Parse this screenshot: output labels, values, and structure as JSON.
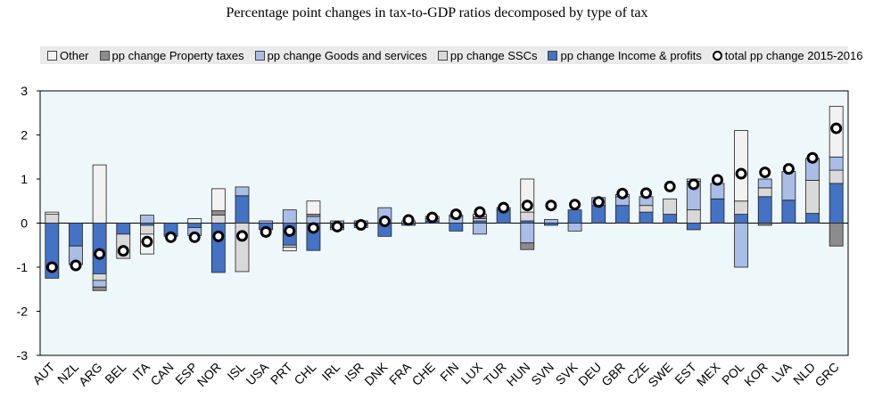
{
  "chart_data": {
    "type": "bar",
    "title": "Percentage point changes in tax-to-GDP ratios decomposed by type of tax",
    "xlabel": "",
    "ylabel": "",
    "ylim": [
      -3,
      3
    ],
    "yticks": [
      3,
      2,
      1,
      0,
      -1,
      -2,
      -3
    ],
    "stacked": true,
    "categories": [
      "AUT",
      "NZL",
      "ARG",
      "BEL",
      "ITA",
      "CAN",
      "ESP",
      "NOR",
      "ISL",
      "USA",
      "PRT",
      "CHL",
      "IRL",
      "ISR",
      "DNK",
      "FRA",
      "CHE",
      "FIN",
      "LUX",
      "TUR",
      "HUN",
      "SVN",
      "SVK",
      "DEU",
      "GBR",
      "CZE",
      "SWE",
      "EST",
      "MEX",
      "POL",
      "KOR",
      "LVA",
      "NLD",
      "GRC"
    ],
    "series": [
      {
        "name": "pp change Income & profits",
        "color": "#4472c4",
        "values": [
          -1.25,
          -0.52,
          -1.15,
          -0.25,
          -0.05,
          -0.3,
          -0.1,
          -1.12,
          0.62,
          -0.15,
          -0.5,
          -0.62,
          -0.1,
          -0.05,
          -0.3,
          -0.05,
          0.05,
          -0.18,
          0.05,
          0.3,
          0.05,
          -0.05,
          0.3,
          0.4,
          0.4,
          0.25,
          0.2,
          -0.15,
          0.55,
          0.2,
          0.6,
          0.52,
          0.22,
          0.9
        ]
      },
      {
        "name": "pp change SSCs",
        "color": "#d9d9d9",
        "values": [
          0.2,
          0.0,
          -0.15,
          -0.55,
          -0.2,
          0.0,
          0.0,
          0.18,
          -1.1,
          0.0,
          -0.05,
          0.0,
          -0.05,
          -0.05,
          0.0,
          0.0,
          0.0,
          0.0,
          0.05,
          0.0,
          0.2,
          0.0,
          0.0,
          0.0,
          0.0,
          0.15,
          0.35,
          0.3,
          0.0,
          0.3,
          0.2,
          0.0,
          0.75,
          0.3
        ]
      },
      {
        "name": "pp change Goods and services",
        "color": "#a9bde6",
        "values": [
          0.0,
          -0.42,
          -0.15,
          0.0,
          0.18,
          0.0,
          -0.18,
          0.0,
          0.2,
          0.05,
          0.3,
          0.15,
          0.05,
          0.05,
          0.35,
          0.0,
          0.05,
          0.15,
          -0.25,
          0.05,
          -0.45,
          0.08,
          -0.18,
          0.18,
          0.2,
          0.2,
          0.0,
          0.65,
          0.35,
          -1.0,
          0.2,
          0.65,
          0.5,
          0.3
        ]
      },
      {
        "name": "pp change Property taxes",
        "color": "#8c8c8c",
        "values": [
          0.0,
          0.0,
          -0.08,
          0.0,
          0.0,
          0.0,
          0.0,
          0.1,
          0.0,
          0.0,
          0.0,
          0.05,
          0.0,
          0.0,
          0.0,
          0.0,
          0.0,
          0.0,
          0.05,
          0.0,
          -0.15,
          0.0,
          0.0,
          0.0,
          0.0,
          0.0,
          0.0,
          0.0,
          0.0,
          0.0,
          -0.05,
          0.0,
          0.0,
          -0.52
        ]
      },
      {
        "name": "Other",
        "color": "#f2f2f2",
        "values": [
          0.05,
          0.0,
          1.32,
          0.0,
          -0.45,
          0.0,
          0.1,
          0.5,
          0.0,
          0.0,
          -0.08,
          0.3,
          0.0,
          0.0,
          0.0,
          0.05,
          0.05,
          0.03,
          0.05,
          0.0,
          0.75,
          0.0,
          0.0,
          0.0,
          0.05,
          0.0,
          0.0,
          0.05,
          0.0,
          1.6,
          0.0,
          0.0,
          0.0,
          1.15
        ]
      }
    ],
    "total": {
      "name": "total pp change 2015-2016",
      "values": [
        -1.0,
        -0.96,
        -0.7,
        -0.63,
        -0.42,
        -0.32,
        -0.32,
        -0.3,
        -0.29,
        -0.2,
        -0.18,
        -0.11,
        -0.08,
        -0.04,
        0.04,
        0.07,
        0.13,
        0.2,
        0.25,
        0.35,
        0.4,
        0.4,
        0.42,
        0.48,
        0.67,
        0.68,
        0.83,
        0.88,
        0.98,
        1.12,
        1.15,
        1.23,
        1.48,
        2.15
      ]
    },
    "legend": {
      "position": "top",
      "items": [
        {
          "label": "Other",
          "color": "#f2f2f2",
          "kind": "box"
        },
        {
          "label": "pp change Property taxes",
          "color": "#8c8c8c",
          "kind": "box"
        },
        {
          "label": "pp change Goods and services",
          "color": "#a9bde6",
          "kind": "box"
        },
        {
          "label": "pp change SSCs",
          "color": "#d9d9d9",
          "kind": "box"
        },
        {
          "label": "pp change Income & profits",
          "color": "#4472c4",
          "kind": "box"
        },
        {
          "label": "total pp change 2015-2016",
          "color": "#ffffff",
          "kind": "dot"
        }
      ]
    },
    "plot_background": "#eef7fa"
  }
}
